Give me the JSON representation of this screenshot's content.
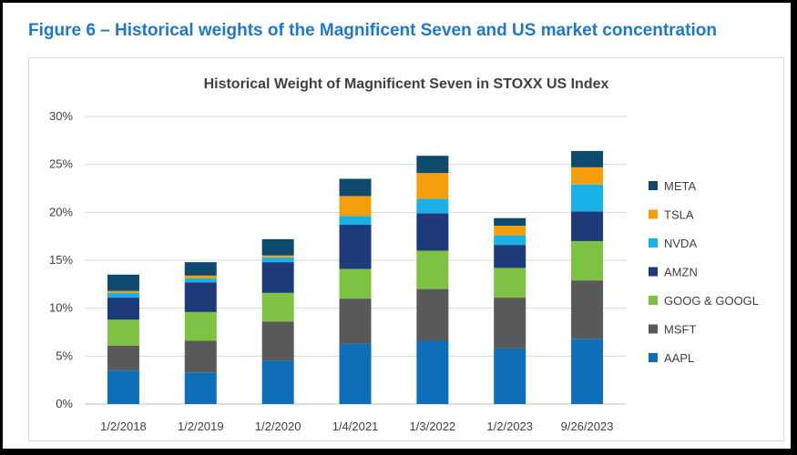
{
  "figure_title": "Figure 6 – Historical weights of the Magnificent Seven and US market concentration",
  "chart_data": {
    "type": "bar",
    "stacked": true,
    "title": "Historical Weight of Magnificent Seven in STOXX US Index",
    "xlabel": "",
    "ylabel": "",
    "ylim": [
      0,
      30
    ],
    "yticks": [
      "0%",
      "5%",
      "10%",
      "15%",
      "20%",
      "25%",
      "30%"
    ],
    "grid": true,
    "legend_position": "right",
    "categories": [
      "1/2/2018",
      "1/2/2019",
      "1/2/2020",
      "1/4/2021",
      "1/3/2022",
      "1/2/2023",
      "9/26/2023"
    ],
    "series": [
      {
        "name": "AAPL",
        "color": "#0f6eb8",
        "values": [
          3.5,
          3.3,
          4.5,
          6.3,
          6.6,
          5.8,
          6.8
        ]
      },
      {
        "name": "MSFT",
        "color": "#595959",
        "values": [
          2.6,
          3.3,
          4.1,
          4.7,
          5.4,
          5.3,
          6.1
        ]
      },
      {
        "name": "GOOG & GOOGL",
        "color": "#7dc242",
        "values": [
          2.7,
          3.0,
          3.0,
          3.1,
          4.0,
          3.1,
          4.1
        ]
      },
      {
        "name": "AMZN",
        "color": "#1f3a78",
        "values": [
          2.3,
          3.1,
          3.2,
          4.6,
          3.9,
          2.4,
          3.1
        ]
      },
      {
        "name": "NVDA",
        "color": "#1ab0e8",
        "values": [
          0.5,
          0.4,
          0.5,
          0.9,
          1.5,
          1.0,
          2.8
        ]
      },
      {
        "name": "TSLA",
        "color": "#f59e0b",
        "values": [
          0.2,
          0.3,
          0.2,
          2.1,
          2.7,
          1.0,
          1.8
        ]
      },
      {
        "name": "META",
        "color": "#0e4a6e",
        "values": [
          1.7,
          1.4,
          1.7,
          1.8,
          1.8,
          0.8,
          1.7
        ]
      }
    ]
  }
}
